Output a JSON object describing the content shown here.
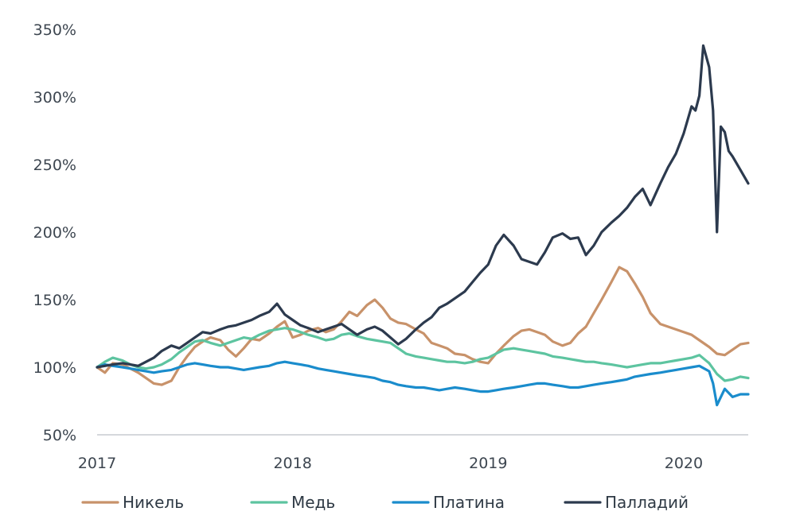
{
  "chart_data": {
    "type": "line",
    "title": "",
    "xlabel": "",
    "ylabel": "",
    "x_ticks": [
      "2017",
      "2018",
      "2019",
      "2020"
    ],
    "x_range": [
      2017.0,
      2020.33
    ],
    "y_ticks": [
      "50%",
      "100%",
      "150%",
      "200%",
      "250%",
      "300%",
      "350%"
    ],
    "ylim": [
      50,
      350
    ],
    "grid": false,
    "legend_position": "bottom",
    "series": [
      {
        "name": "Никель",
        "color": "#c8926a",
        "x": [
          2017.0,
          2017.04,
          2017.08,
          2017.13,
          2017.17,
          2017.21,
          2017.25,
          2017.29,
          2017.33,
          2017.38,
          2017.42,
          2017.46,
          2017.5,
          2017.54,
          2017.58,
          2017.63,
          2017.67,
          2017.71,
          2017.75,
          2017.79,
          2017.83,
          2017.88,
          2017.92,
          2017.96,
          2018.0,
          2018.04,
          2018.08,
          2018.13,
          2018.17,
          2018.21,
          2018.25,
          2018.29,
          2018.33,
          2018.38,
          2018.42,
          2018.46,
          2018.5,
          2018.54,
          2018.58,
          2018.63,
          2018.67,
          2018.71,
          2018.75,
          2018.79,
          2018.83,
          2018.88,
          2018.92,
          2018.96,
          2019.0,
          2019.04,
          2019.08,
          2019.13,
          2019.17,
          2019.21,
          2019.25,
          2019.29,
          2019.33,
          2019.38,
          2019.42,
          2019.46,
          2019.5,
          2019.54,
          2019.58,
          2019.63,
          2019.67,
          2019.71,
          2019.75,
          2019.79,
          2019.83,
          2019.88,
          2019.92,
          2019.96,
          2020.0,
          2020.04,
          2020.08,
          2020.13,
          2020.17,
          2020.21,
          2020.25,
          2020.29,
          2020.33
        ],
        "values": [
          100,
          96,
          103,
          102,
          99,
          96,
          92,
          88,
          87,
          90,
          100,
          108,
          115,
          119,
          122,
          120,
          113,
          108,
          114,
          121,
          120,
          125,
          130,
          134,
          122,
          124,
          127,
          129,
          126,
          128,
          134,
          141,
          138,
          146,
          150,
          144,
          136,
          133,
          132,
          128,
          125,
          118,
          116,
          114,
          110,
          109,
          106,
          104,
          103,
          110,
          116,
          123,
          127,
          128,
          126,
          124,
          119,
          116,
          118,
          125,
          130,
          140,
          150,
          163,
          174,
          171,
          162,
          152,
          140,
          132,
          130,
          128,
          126,
          124,
          120,
          115,
          110,
          109,
          113,
          117,
          118
        ]
      },
      {
        "name": "Медь",
        "color": "#5dc4a0",
        "x": [
          2017.0,
          2017.04,
          2017.08,
          2017.13,
          2017.17,
          2017.21,
          2017.25,
          2017.29,
          2017.33,
          2017.38,
          2017.42,
          2017.46,
          2017.5,
          2017.54,
          2017.58,
          2017.63,
          2017.67,
          2017.71,
          2017.75,
          2017.79,
          2017.83,
          2017.88,
          2017.92,
          2017.96,
          2018.0,
          2018.04,
          2018.08,
          2018.13,
          2018.17,
          2018.21,
          2018.25,
          2018.29,
          2018.33,
          2018.38,
          2018.42,
          2018.46,
          2018.5,
          2018.54,
          2018.58,
          2018.63,
          2018.67,
          2018.71,
          2018.75,
          2018.79,
          2018.83,
          2018.88,
          2018.92,
          2018.96,
          2019.0,
          2019.04,
          2019.08,
          2019.13,
          2019.17,
          2019.21,
          2019.25,
          2019.29,
          2019.33,
          2019.38,
          2019.42,
          2019.46,
          2019.5,
          2019.54,
          2019.58,
          2019.63,
          2019.67,
          2019.71,
          2019.75,
          2019.79,
          2019.83,
          2019.88,
          2019.92,
          2019.96,
          2020.0,
          2020.04,
          2020.08,
          2020.13,
          2020.17,
          2020.21,
          2020.25,
          2020.29,
          2020.33
        ],
        "values": [
          100,
          104,
          107,
          105,
          102,
          100,
          99,
          100,
          102,
          106,
          111,
          115,
          119,
          120,
          118,
          116,
          118,
          120,
          122,
          121,
          124,
          127,
          128,
          129,
          128,
          126,
          124,
          122,
          120,
          121,
          124,
          125,
          123,
          121,
          120,
          119,
          118,
          114,
          110,
          108,
          107,
          106,
          105,
          104,
          104,
          103,
          104,
          106,
          107,
          110,
          113,
          114,
          113,
          112,
          111,
          110,
          108,
          107,
          106,
          105,
          104,
          104,
          103,
          102,
          101,
          100,
          101,
          102,
          103,
          103,
          104,
          105,
          106,
          107,
          109,
          103,
          95,
          90,
          91,
          93,
          92
        ]
      },
      {
        "name": "Платина",
        "color": "#1a8ccc",
        "x": [
          2017.0,
          2017.04,
          2017.08,
          2017.13,
          2017.17,
          2017.21,
          2017.25,
          2017.29,
          2017.33,
          2017.38,
          2017.42,
          2017.46,
          2017.5,
          2017.54,
          2017.58,
          2017.63,
          2017.67,
          2017.71,
          2017.75,
          2017.79,
          2017.83,
          2017.88,
          2017.92,
          2017.96,
          2018.0,
          2018.04,
          2018.08,
          2018.13,
          2018.17,
          2018.21,
          2018.25,
          2018.29,
          2018.33,
          2018.38,
          2018.42,
          2018.46,
          2018.5,
          2018.54,
          2018.58,
          2018.63,
          2018.67,
          2018.71,
          2018.75,
          2018.79,
          2018.83,
          2018.88,
          2018.92,
          2018.96,
          2019.0,
          2019.04,
          2019.08,
          2019.13,
          2019.17,
          2019.21,
          2019.25,
          2019.29,
          2019.33,
          2019.38,
          2019.42,
          2019.46,
          2019.5,
          2019.54,
          2019.58,
          2019.63,
          2019.67,
          2019.71,
          2019.75,
          2019.79,
          2019.83,
          2019.88,
          2019.92,
          2019.96,
          2020.0,
          2020.04,
          2020.08,
          2020.13,
          2020.15,
          2020.17,
          2020.21,
          2020.25,
          2020.29,
          2020.33
        ],
        "values": [
          100,
          102,
          101,
          100,
          99,
          98,
          97,
          96,
          97,
          98,
          100,
          102,
          103,
          102,
          101,
          100,
          100,
          99,
          98,
          99,
          100,
          101,
          103,
          104,
          103,
          102,
          101,
          99,
          98,
          97,
          96,
          95,
          94,
          93,
          92,
          90,
          89,
          87,
          86,
          85,
          85,
          84,
          83,
          84,
          85,
          84,
          83,
          82,
          82,
          83,
          84,
          85,
          86,
          87,
          88,
          88,
          87,
          86,
          85,
          85,
          86,
          87,
          88,
          89,
          90,
          91,
          93,
          94,
          95,
          96,
          97,
          98,
          99,
          100,
          101,
          97,
          88,
          72,
          84,
          78,
          80,
          80
        ]
      },
      {
        "name": "Палладий",
        "color": "#2c3a4e",
        "x": [
          2017.0,
          2017.04,
          2017.08,
          2017.13,
          2017.17,
          2017.21,
          2017.25,
          2017.29,
          2017.33,
          2017.38,
          2017.42,
          2017.46,
          2017.5,
          2017.54,
          2017.58,
          2017.63,
          2017.67,
          2017.71,
          2017.75,
          2017.79,
          2017.83,
          2017.88,
          2017.92,
          2017.96,
          2018.0,
          2018.04,
          2018.08,
          2018.13,
          2018.17,
          2018.21,
          2018.25,
          2018.29,
          2018.33,
          2018.38,
          2018.42,
          2018.46,
          2018.5,
          2018.54,
          2018.58,
          2018.63,
          2018.67,
          2018.71,
          2018.75,
          2018.79,
          2018.83,
          2018.88,
          2018.92,
          2018.96,
          2019.0,
          2019.04,
          2019.08,
          2019.13,
          2019.17,
          2019.21,
          2019.25,
          2019.29,
          2019.33,
          2019.38,
          2019.42,
          2019.46,
          2019.5,
          2019.54,
          2019.58,
          2019.63,
          2019.67,
          2019.71,
          2019.75,
          2019.79,
          2019.83,
          2019.88,
          2019.92,
          2019.96,
          2020.0,
          2020.04,
          2020.06,
          2020.08,
          2020.1,
          2020.13,
          2020.15,
          2020.17,
          2020.19,
          2020.21,
          2020.23,
          2020.25,
          2020.29,
          2020.33
        ],
        "values": [
          100,
          101,
          102,
          103,
          102,
          101,
          104,
          107,
          112,
          116,
          114,
          118,
          122,
          126,
          125,
          128,
          130,
          131,
          133,
          135,
          138,
          141,
          147,
          139,
          135,
          131,
          129,
          126,
          128,
          130,
          132,
          128,
          124,
          128,
          130,
          127,
          122,
          117,
          121,
          128,
          133,
          137,
          144,
          147,
          151,
          156,
          163,
          170,
          176,
          190,
          198,
          190,
          180,
          178,
          176,
          185,
          196,
          199,
          195,
          196,
          183,
          190,
          200,
          207,
          212,
          218,
          226,
          232,
          220,
          236,
          248,
          258,
          273,
          293,
          290,
          301,
          338,
          322,
          290,
          200,
          278,
          274,
          260,
          256,
          246,
          236
        ]
      }
    ]
  }
}
